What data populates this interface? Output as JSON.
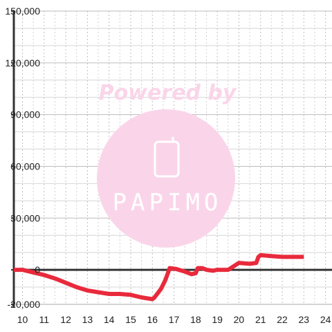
{
  "watermark": {
    "powered_text": "Powered by",
    "logo_text": "PAPIMO",
    "color": "#fad5e9",
    "logo_color": "#ffffff"
  },
  "chart_data": {
    "type": "line",
    "x": [
      9.6,
      10,
      10.5,
      11,
      11.5,
      12,
      12.5,
      13,
      13.5,
      14,
      14.5,
      15,
      15.5,
      16,
      16.1,
      16.4,
      16.6,
      16.8,
      17.1,
      17.5,
      17.8,
      18,
      18.1,
      18.3,
      18.5,
      18.8,
      19,
      19.5,
      20,
      20.5,
      20.8,
      20.9,
      21,
      21.5,
      22,
      22.5,
      23
    ],
    "y": [
      0,
      0,
      -1500,
      -3000,
      -5000,
      -7500,
      -10000,
      -12000,
      -13000,
      -14000,
      -14000,
      -14500,
      -16000,
      -17000,
      -16000,
      -11000,
      -6000,
      1000,
      500,
      -1000,
      -2500,
      -2000,
      1000,
      1000,
      0,
      -500,
      0,
      0,
      4000,
      3500,
      4000,
      7500,
      8500,
      8000,
      7500,
      7500,
      7500
    ],
    "xlim": [
      9.6,
      24.3
    ],
    "ylim": [
      -20000,
      150000
    ],
    "x_ticks": [
      10,
      11,
      12,
      13,
      14,
      15,
      16,
      17,
      18,
      19,
      20,
      21,
      22,
      23,
      24
    ],
    "x_tick_labels": [
      "10",
      "11",
      "12",
      "13",
      "14",
      "15",
      "16",
      "17",
      "18",
      "19",
      "20",
      "21",
      "22",
      "23",
      "24"
    ],
    "y_ticks": [
      -20000,
      0,
      30000,
      60000,
      90000,
      120000,
      150000
    ],
    "y_tick_labels": [
      "-20,000",
      "0",
      "30,000",
      "60,000",
      "90,000",
      "120,000",
      "150,000"
    ],
    "y_minor_step": 10000,
    "grid": true,
    "line_color": "#e82a3c",
    "title": "",
    "xlabel": "",
    "ylabel": ""
  }
}
